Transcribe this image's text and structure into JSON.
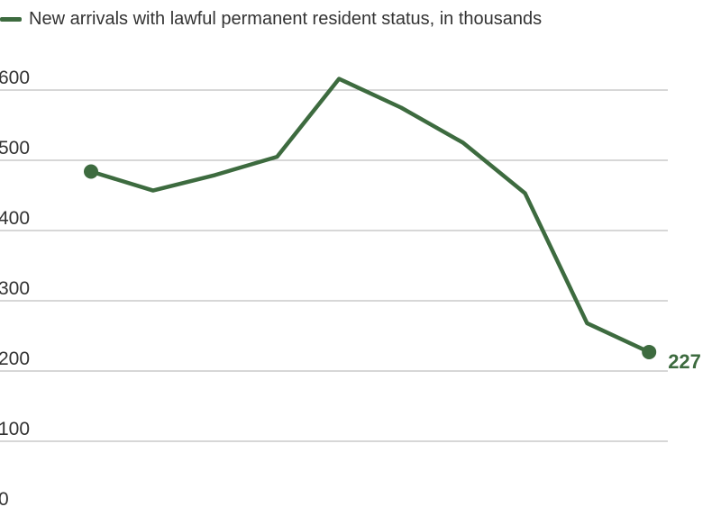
{
  "chart_data": {
    "type": "line",
    "legend": "New arrivals with lawful permanent resident status, in thousands",
    "legend_position": "top-left",
    "x": [
      1,
      2,
      3,
      4,
      5,
      6,
      7,
      8,
      9,
      10
    ],
    "series": [
      {
        "name": "New arrivals with lawful permanent resident status, in thousands",
        "values": [
          484,
          457,
          479,
          505,
          616,
          575,
          525,
          453,
          268,
          227
        ],
        "color": "#3d6b3f"
      }
    ],
    "end_label": "227",
    "ylim": [
      0,
      600
    ],
    "yticks": [
      0,
      100,
      200,
      300,
      400,
      500,
      600
    ],
    "ytick_labels": [
      "0",
      "100",
      "200",
      "300",
      "400",
      "500",
      "600"
    ],
    "grid": true,
    "gridline_color": "#bfbfbf",
    "axis_text_color": "#333333"
  }
}
